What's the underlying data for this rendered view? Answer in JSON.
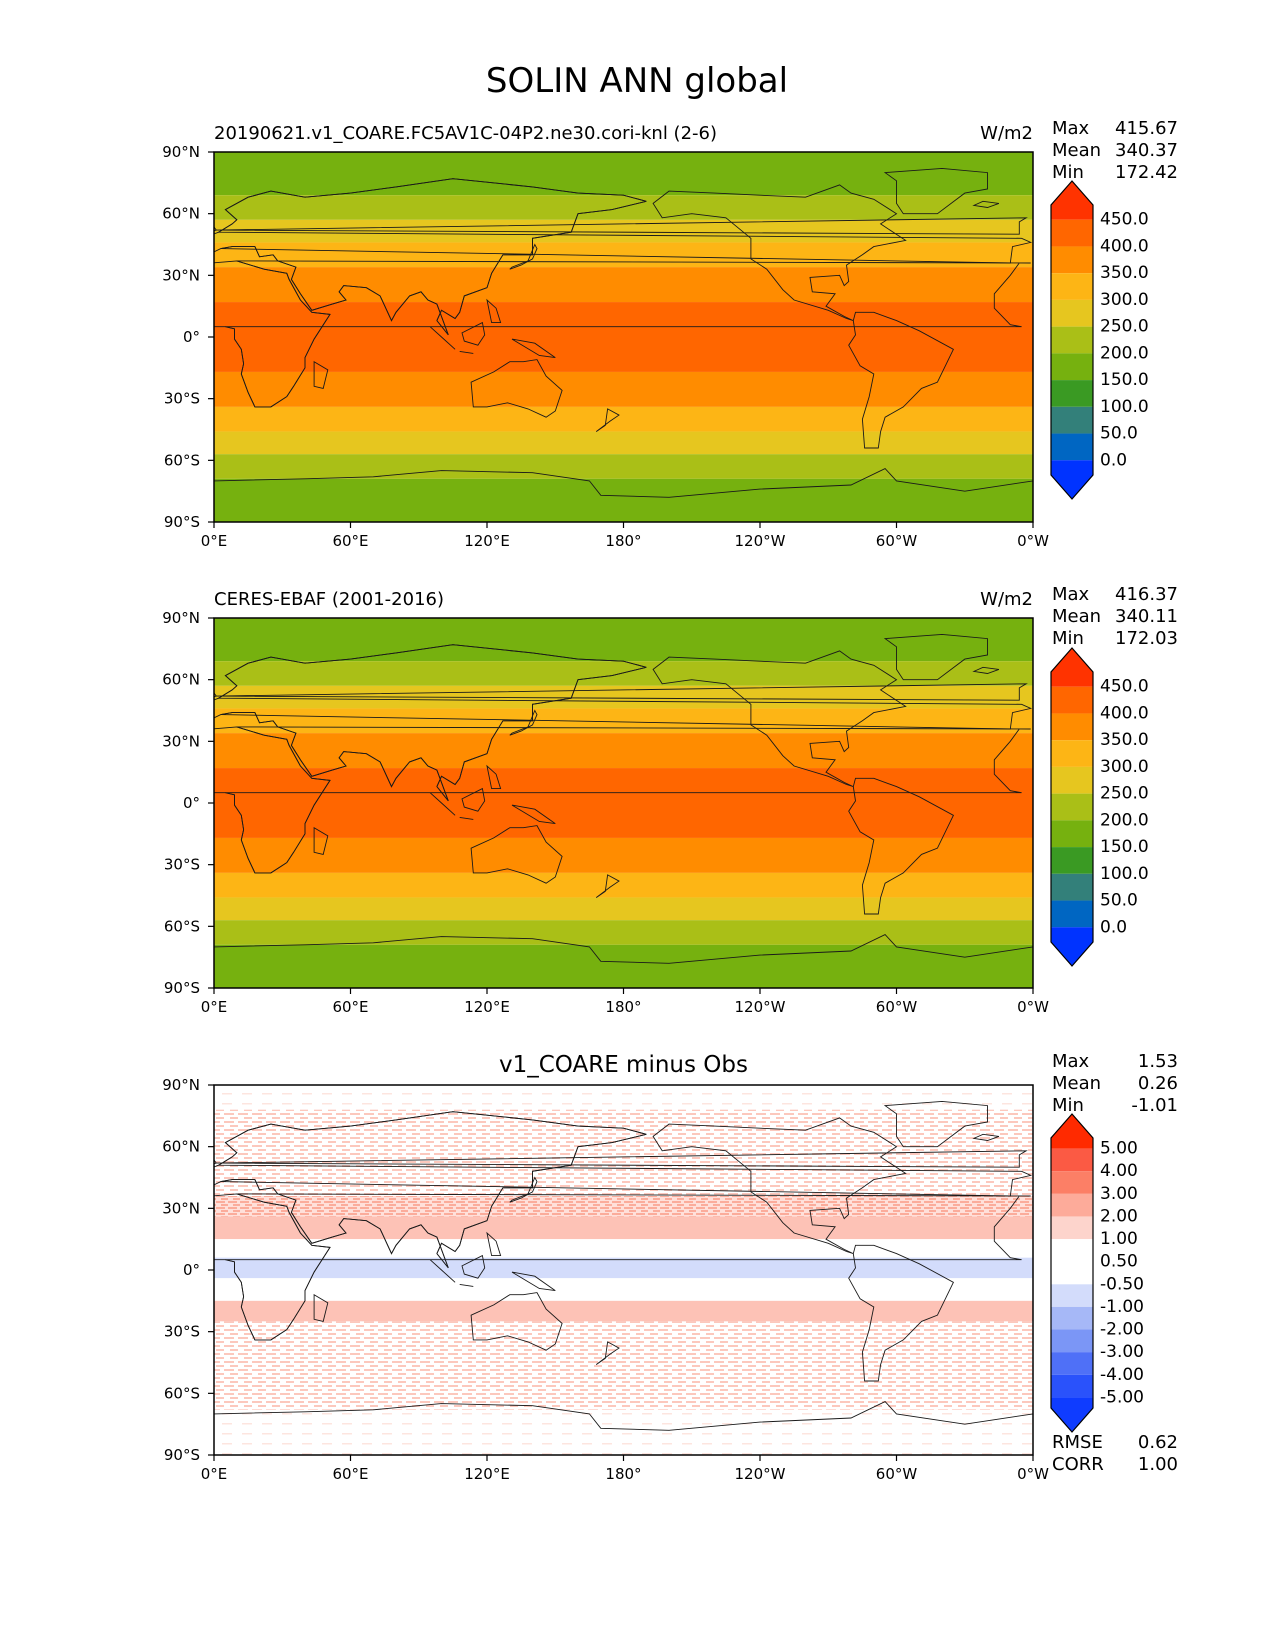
{
  "figure": {
    "title": "SOLIN ANN global"
  },
  "chart_data": [
    {
      "type": "heatmap",
      "title": "20190621.v1_COARE.FC5AV1C-04P2.ne30.cori-knl (2-6)",
      "units": "W/m2",
      "stats": {
        "max_label": "Max",
        "max": "415.67",
        "mean_label": "Mean",
        "mean": "340.37",
        "min_label": "Min",
        "min": "172.42"
      },
      "x_ticks": [
        "0°E",
        "60°E",
        "120°E",
        "180°",
        "120°W",
        "60°W",
        "0°W"
      ],
      "y_ticks": [
        "90°N",
        "60°N",
        "30°N",
        "0°",
        "30°S",
        "60°S",
        "90°S"
      ],
      "xlim": [
        0,
        360
      ],
      "ylim": [
        -90,
        90
      ],
      "colorbar": {
        "levels": [
          "450.0",
          "400.0",
          "350.0",
          "300.0",
          "250.0",
          "200.0",
          "150.0",
          "100.0",
          "50.0",
          "0.0"
        ],
        "colors": [
          "#ff3300",
          "#ff6600",
          "#ff8c00",
          "#fdb515",
          "#e6c61f",
          "#aabf17",
          "#76b10f",
          "#3a9a23",
          "#33807a",
          "#0066c2",
          "#0033ff"
        ]
      },
      "bands": [
        {
          "lat_from": 90,
          "lat_to": 69,
          "value_class": "150-200"
        },
        {
          "lat_from": 69,
          "lat_to": 57,
          "value_class": "200-250"
        },
        {
          "lat_from": 57,
          "lat_to": 46,
          "value_class": "250-300"
        },
        {
          "lat_from": 46,
          "lat_to": 34,
          "value_class": "300-350"
        },
        {
          "lat_from": 34,
          "lat_to": 17,
          "value_class": "350-400"
        },
        {
          "lat_from": 17,
          "lat_to": -17,
          "value_class": "400-450"
        },
        {
          "lat_from": -17,
          "lat_to": -34,
          "value_class": "350-400"
        },
        {
          "lat_from": -34,
          "lat_to": -46,
          "value_class": "300-350"
        },
        {
          "lat_from": -46,
          "lat_to": -57,
          "value_class": "250-300"
        },
        {
          "lat_from": -57,
          "lat_to": -69,
          "value_class": "200-250"
        },
        {
          "lat_from": -69,
          "lat_to": -90,
          "value_class": "150-200"
        }
      ]
    },
    {
      "type": "heatmap",
      "title": "CERES-EBAF (2001-2016)",
      "units": "W/m2",
      "stats": {
        "max_label": "Max",
        "max": "416.37",
        "mean_label": "Mean",
        "mean": "340.11",
        "min_label": "Min",
        "min": "172.03"
      },
      "x_ticks": [
        "0°E",
        "60°E",
        "120°E",
        "180°",
        "120°W",
        "60°W",
        "0°W"
      ],
      "y_ticks": [
        "90°N",
        "60°N",
        "30°N",
        "0°",
        "30°S",
        "60°S",
        "90°S"
      ],
      "xlim": [
        0,
        360
      ],
      "ylim": [
        -90,
        90
      ],
      "colorbar": {
        "levels": [
          "450.0",
          "400.0",
          "350.0",
          "300.0",
          "250.0",
          "200.0",
          "150.0",
          "100.0",
          "50.0",
          "0.0"
        ],
        "colors": [
          "#ff3300",
          "#ff6600",
          "#ff8c00",
          "#fdb515",
          "#e6c61f",
          "#aabf17",
          "#76b10f",
          "#3a9a23",
          "#33807a",
          "#0066c2",
          "#0033ff"
        ]
      },
      "bands": [
        {
          "lat_from": 90,
          "lat_to": 69,
          "value_class": "150-200"
        },
        {
          "lat_from": 69,
          "lat_to": 57,
          "value_class": "200-250"
        },
        {
          "lat_from": 57,
          "lat_to": 46,
          "value_class": "250-300"
        },
        {
          "lat_from": 46,
          "lat_to": 34,
          "value_class": "300-350"
        },
        {
          "lat_from": 34,
          "lat_to": 17,
          "value_class": "350-400"
        },
        {
          "lat_from": 17,
          "lat_to": -17,
          "value_class": "400-450"
        },
        {
          "lat_from": -17,
          "lat_to": -34,
          "value_class": "350-400"
        },
        {
          "lat_from": -34,
          "lat_to": -46,
          "value_class": "300-350"
        },
        {
          "lat_from": -46,
          "lat_to": -57,
          "value_class": "250-300"
        },
        {
          "lat_from": -57,
          "lat_to": -69,
          "value_class": "200-250"
        },
        {
          "lat_from": -69,
          "lat_to": -90,
          "value_class": "150-200"
        }
      ]
    },
    {
      "type": "heatmap",
      "title": "v1_COARE minus Obs",
      "units": "",
      "stats": {
        "max_label": "Max",
        "max": "1.53",
        "mean_label": "Mean",
        "mean": "0.26",
        "min_label": "Min",
        "min": "-1.01"
      },
      "extra_stats": {
        "rmse_label": "RMSE",
        "rmse": "0.62",
        "corr_label": "CORR",
        "corr": "1.00"
      },
      "x_ticks": [
        "0°E",
        "60°E",
        "120°E",
        "180°",
        "120°W",
        "60°W",
        "0°W"
      ],
      "y_ticks": [
        "90°N",
        "60°N",
        "30°N",
        "0°",
        "30°S",
        "60°S",
        "90°S"
      ],
      "xlim": [
        0,
        360
      ],
      "ylim": [
        -90,
        90
      ],
      "colorbar": {
        "levels": [
          "5.00",
          "4.00",
          "3.00",
          "2.00",
          "1.00",
          "0.50",
          "-0.50",
          "-1.00",
          "-2.00",
          "-3.00",
          "-4.00",
          "-5.00"
        ],
        "colors": [
          "#ff2a00",
          "#fb5a44",
          "#fc7f66",
          "#fdab9a",
          "#fdd4cc",
          "#ffffff",
          "#ffffff",
          "#d3dcfb",
          "#a6b8f7",
          "#7b96f6",
          "#4f70f7",
          "#2a52fb",
          "#0f3cff"
        ]
      },
      "bands": [
        {
          "lat_from": 90,
          "lat_to": 78,
          "value_class": "0.50-1.00",
          "pattern": "faint"
        },
        {
          "lat_from": 78,
          "lat_to": 36,
          "value_class": "0.50-1.00",
          "pattern": "speckled"
        },
        {
          "lat_from": 36,
          "lat_to": 26,
          "value_class": "1.00-2.00",
          "pattern": "speckled"
        },
        {
          "lat_from": 26,
          "lat_to": 15,
          "value_class": "1.00-2.00",
          "pattern": "solid"
        },
        {
          "lat_from": 15,
          "lat_to": 6,
          "value_class": "-0.50-0.50",
          "pattern": "solid"
        },
        {
          "lat_from": 6,
          "lat_to": -4,
          "value_class": "-1.00--0.50",
          "pattern": "solid"
        },
        {
          "lat_from": -4,
          "lat_to": -15,
          "value_class": "-0.50-0.50",
          "pattern": "solid"
        },
        {
          "lat_from": -15,
          "lat_to": -25,
          "value_class": "1.00-2.00",
          "pattern": "solid"
        },
        {
          "lat_from": -25,
          "lat_to": -68,
          "value_class": "0.50-1.00",
          "pattern": "speckled"
        },
        {
          "lat_from": -68,
          "lat_to": -90,
          "value_class": "0.50-1.00",
          "pattern": "faint"
        }
      ]
    }
  ]
}
